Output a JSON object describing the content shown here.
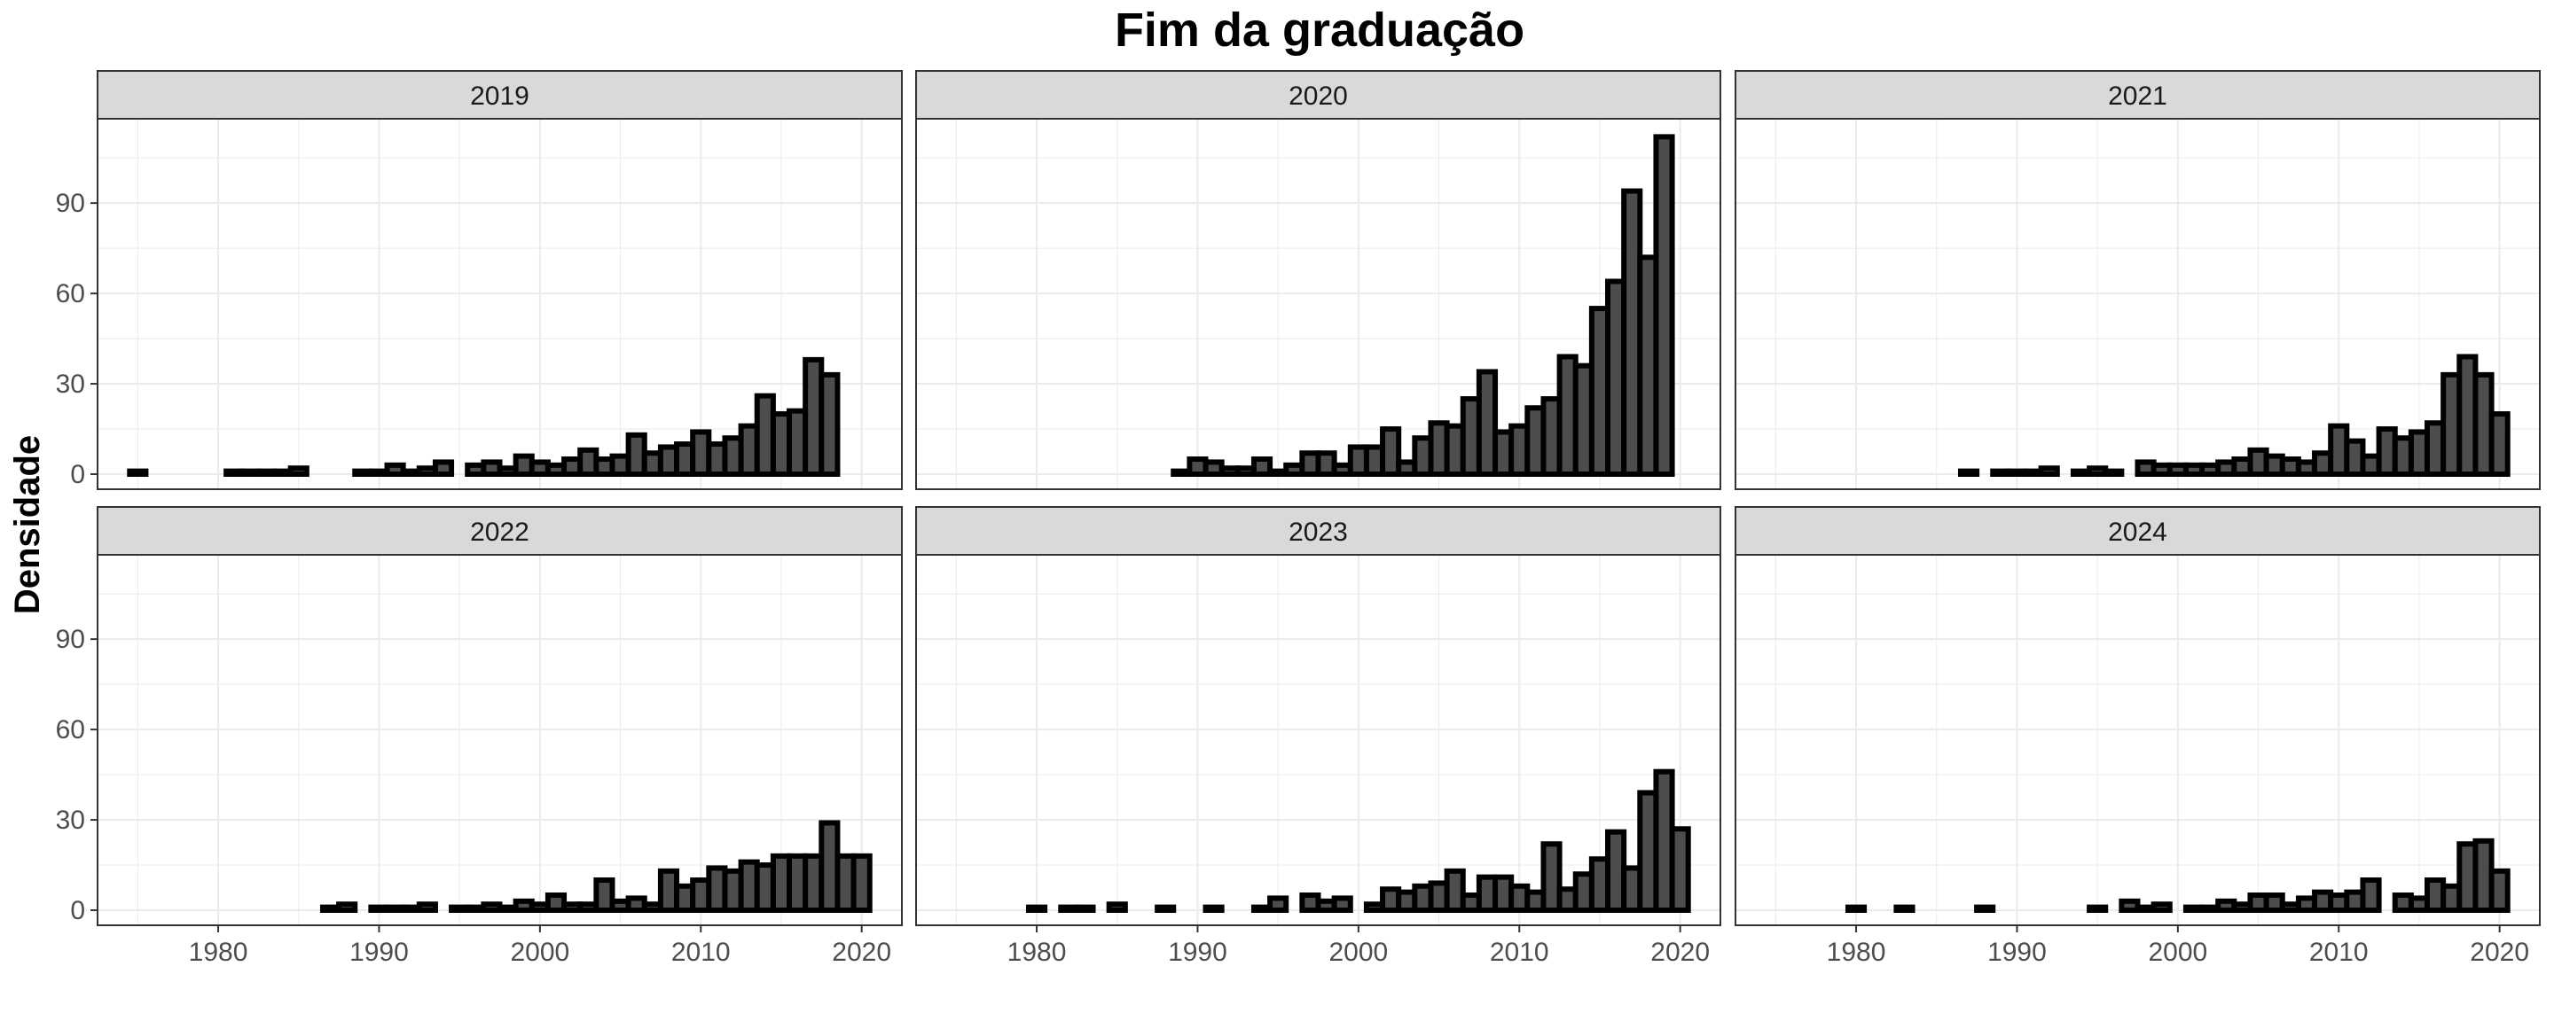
{
  "chart_data": {
    "type": "bar",
    "title": "Fim da graduação",
    "ylabel": "Densidade",
    "xlabel": "",
    "xlim": [
      1972.5,
      2022.5
    ],
    "ylim": [
      -5,
      118
    ],
    "x_ticks": [
      1980,
      1990,
      2000,
      2010,
      2020
    ],
    "y_ticks": [
      0,
      30,
      60,
      90
    ],
    "grid": true,
    "bin_width": 1,
    "bar_fill": "#4d4d4d",
    "bar_edge": "#000000",
    "panel_strip_color": "#d9d9d9",
    "panels": [
      {
        "label": "2019",
        "bars": [
          {
            "x": 1975,
            "y": 1
          },
          {
            "x": 1981,
            "y": 1
          },
          {
            "x": 1982,
            "y": 1
          },
          {
            "x": 1983,
            "y": 1
          },
          {
            "x": 1984,
            "y": 1
          },
          {
            "x": 1985,
            "y": 2
          },
          {
            "x": 1989,
            "y": 1
          },
          {
            "x": 1990,
            "y": 1
          },
          {
            "x": 1991,
            "y": 3
          },
          {
            "x": 1992,
            "y": 1
          },
          {
            "x": 1993,
            "y": 2
          },
          {
            "x": 1994,
            "y": 4
          },
          {
            "x": 1996,
            "y": 3
          },
          {
            "x": 1997,
            "y": 4
          },
          {
            "x": 1998,
            "y": 2
          },
          {
            "x": 1999,
            "y": 6
          },
          {
            "x": 2000,
            "y": 4
          },
          {
            "x": 2001,
            "y": 3
          },
          {
            "x": 2002,
            "y": 5
          },
          {
            "x": 2003,
            "y": 8
          },
          {
            "x": 2004,
            "y": 5
          },
          {
            "x": 2005,
            "y": 6
          },
          {
            "x": 2006,
            "y": 13
          },
          {
            "x": 2007,
            "y": 7
          },
          {
            "x": 2008,
            "y": 9
          },
          {
            "x": 2009,
            "y": 10
          },
          {
            "x": 2010,
            "y": 14
          },
          {
            "x": 2011,
            "y": 10
          },
          {
            "x": 2012,
            "y": 12
          },
          {
            "x": 2013,
            "y": 16
          },
          {
            "x": 2014,
            "y": 26
          },
          {
            "x": 2015,
            "y": 20
          },
          {
            "x": 2016,
            "y": 21
          },
          {
            "x": 2017,
            "y": 38
          },
          {
            "x": 2018,
            "y": 33
          }
        ]
      },
      {
        "label": "2020",
        "bars": [
          {
            "x": 1989,
            "y": 1
          },
          {
            "x": 1990,
            "y": 5
          },
          {
            "x": 1991,
            "y": 4
          },
          {
            "x": 1992,
            "y": 2
          },
          {
            "x": 1993,
            "y": 2
          },
          {
            "x": 1994,
            "y": 5
          },
          {
            "x": 1995,
            "y": 1
          },
          {
            "x": 1996,
            "y": 3
          },
          {
            "x": 1997,
            "y": 7
          },
          {
            "x": 1998,
            "y": 7
          },
          {
            "x": 1999,
            "y": 3
          },
          {
            "x": 2000,
            "y": 9
          },
          {
            "x": 2001,
            "y": 9
          },
          {
            "x": 2002,
            "y": 15
          },
          {
            "x": 2003,
            "y": 4
          },
          {
            "x": 2004,
            "y": 12
          },
          {
            "x": 2005,
            "y": 17
          },
          {
            "x": 2006,
            "y": 16
          },
          {
            "x": 2007,
            "y": 25
          },
          {
            "x": 2008,
            "y": 34
          },
          {
            "x": 2009,
            "y": 14
          },
          {
            "x": 2010,
            "y": 16
          },
          {
            "x": 2011,
            "y": 22
          },
          {
            "x": 2012,
            "y": 25
          },
          {
            "x": 2013,
            "y": 39
          },
          {
            "x": 2014,
            "y": 36
          },
          {
            "x": 2015,
            "y": 55
          },
          {
            "x": 2016,
            "y": 64
          },
          {
            "x": 2017,
            "y": 94
          },
          {
            "x": 2018,
            "y": 72
          },
          {
            "x": 2019,
            "y": 112
          }
        ]
      },
      {
        "label": "2021",
        "bars": [
          {
            "x": 1987,
            "y": 1
          },
          {
            "x": 1989,
            "y": 1
          },
          {
            "x": 1990,
            "y": 1
          },
          {
            "x": 1991,
            "y": 1
          },
          {
            "x": 1992,
            "y": 2
          },
          {
            "x": 1994,
            "y": 1
          },
          {
            "x": 1995,
            "y": 2
          },
          {
            "x": 1996,
            "y": 1
          },
          {
            "x": 1998,
            "y": 4
          },
          {
            "x": 1999,
            "y": 3
          },
          {
            "x": 2000,
            "y": 3
          },
          {
            "x": 2001,
            "y": 3
          },
          {
            "x": 2002,
            "y": 3
          },
          {
            "x": 2003,
            "y": 4
          },
          {
            "x": 2004,
            "y": 5
          },
          {
            "x": 2005,
            "y": 8
          },
          {
            "x": 2006,
            "y": 6
          },
          {
            "x": 2007,
            "y": 5
          },
          {
            "x": 2008,
            "y": 4
          },
          {
            "x": 2009,
            "y": 7
          },
          {
            "x": 2010,
            "y": 16
          },
          {
            "x": 2011,
            "y": 11
          },
          {
            "x": 2012,
            "y": 6
          },
          {
            "x": 2013,
            "y": 15
          },
          {
            "x": 2014,
            "y": 12
          },
          {
            "x": 2015,
            "y": 14
          },
          {
            "x": 2016,
            "y": 17
          },
          {
            "x": 2017,
            "y": 33
          },
          {
            "x": 2018,
            "y": 39
          },
          {
            "x": 2019,
            "y": 33
          },
          {
            "x": 2020,
            "y": 20
          }
        ]
      },
      {
        "label": "2022",
        "bars": [
          {
            "x": 1987,
            "y": 1
          },
          {
            "x": 1988,
            "y": 2
          },
          {
            "x": 1990,
            "y": 1
          },
          {
            "x": 1991,
            "y": 1
          },
          {
            "x": 1992,
            "y": 1
          },
          {
            "x": 1993,
            "y": 2
          },
          {
            "x": 1995,
            "y": 1
          },
          {
            "x": 1996,
            "y": 1
          },
          {
            "x": 1997,
            "y": 2
          },
          {
            "x": 1998,
            "y": 1
          },
          {
            "x": 1999,
            "y": 3
          },
          {
            "x": 2000,
            "y": 2
          },
          {
            "x": 2001,
            "y": 5
          },
          {
            "x": 2002,
            "y": 2
          },
          {
            "x": 2003,
            "y": 2
          },
          {
            "x": 2004,
            "y": 10
          },
          {
            "x": 2005,
            "y": 3
          },
          {
            "x": 2006,
            "y": 4
          },
          {
            "x": 2007,
            "y": 2
          },
          {
            "x": 2008,
            "y": 13
          },
          {
            "x": 2009,
            "y": 8
          },
          {
            "x": 2010,
            "y": 10
          },
          {
            "x": 2011,
            "y": 14
          },
          {
            "x": 2012,
            "y": 13
          },
          {
            "x": 2013,
            "y": 16
          },
          {
            "x": 2014,
            "y": 15
          },
          {
            "x": 2015,
            "y": 18
          },
          {
            "x": 2016,
            "y": 18
          },
          {
            "x": 2017,
            "y": 18
          },
          {
            "x": 2018,
            "y": 29
          },
          {
            "x": 2019,
            "y": 18
          },
          {
            "x": 2020,
            "y": 18
          }
        ]
      },
      {
        "label": "2023",
        "bars": [
          {
            "x": 1980,
            "y": 1
          },
          {
            "x": 1982,
            "y": 1
          },
          {
            "x": 1983,
            "y": 1
          },
          {
            "x": 1985,
            "y": 2
          },
          {
            "x": 1988,
            "y": 1
          },
          {
            "x": 1991,
            "y": 1
          },
          {
            "x": 1994,
            "y": 1
          },
          {
            "x": 1995,
            "y": 4
          },
          {
            "x": 1997,
            "y": 5
          },
          {
            "x": 1998,
            "y": 3
          },
          {
            "x": 1999,
            "y": 4
          },
          {
            "x": 2001,
            "y": 2
          },
          {
            "x": 2002,
            "y": 7
          },
          {
            "x": 2003,
            "y": 6
          },
          {
            "x": 2004,
            "y": 8
          },
          {
            "x": 2005,
            "y": 9
          },
          {
            "x": 2006,
            "y": 13
          },
          {
            "x": 2007,
            "y": 5
          },
          {
            "x": 2008,
            "y": 11
          },
          {
            "x": 2009,
            "y": 11
          },
          {
            "x": 2010,
            "y": 8
          },
          {
            "x": 2011,
            "y": 6
          },
          {
            "x": 2012,
            "y": 22
          },
          {
            "x": 2013,
            "y": 7
          },
          {
            "x": 2014,
            "y": 12
          },
          {
            "x": 2015,
            "y": 17
          },
          {
            "x": 2016,
            "y": 26
          },
          {
            "x": 2017,
            "y": 14
          },
          {
            "x": 2018,
            "y": 39
          },
          {
            "x": 2019,
            "y": 46
          },
          {
            "x": 2020,
            "y": 27
          }
        ]
      },
      {
        "label": "2024",
        "bars": [
          {
            "x": 1980,
            "y": 1
          },
          {
            "x": 1983,
            "y": 1
          },
          {
            "x": 1988,
            "y": 1
          },
          {
            "x": 1995,
            "y": 1
          },
          {
            "x": 1997,
            "y": 3
          },
          {
            "x": 1998,
            "y": 1
          },
          {
            "x": 1999,
            "y": 2
          },
          {
            "x": 2001,
            "y": 1
          },
          {
            "x": 2002,
            "y": 1
          },
          {
            "x": 2003,
            "y": 3
          },
          {
            "x": 2004,
            "y": 2
          },
          {
            "x": 2005,
            "y": 5
          },
          {
            "x": 2006,
            "y": 5
          },
          {
            "x": 2007,
            "y": 2
          },
          {
            "x": 2008,
            "y": 4
          },
          {
            "x": 2009,
            "y": 6
          },
          {
            "x": 2010,
            "y": 5
          },
          {
            "x": 2011,
            "y": 6
          },
          {
            "x": 2012,
            "y": 10
          },
          {
            "x": 2014,
            "y": 5
          },
          {
            "x": 2015,
            "y": 4
          },
          {
            "x": 2016,
            "y": 10
          },
          {
            "x": 2017,
            "y": 8
          },
          {
            "x": 2018,
            "y": 22
          },
          {
            "x": 2019,
            "y": 23
          },
          {
            "x": 2020,
            "y": 13
          }
        ]
      }
    ]
  }
}
